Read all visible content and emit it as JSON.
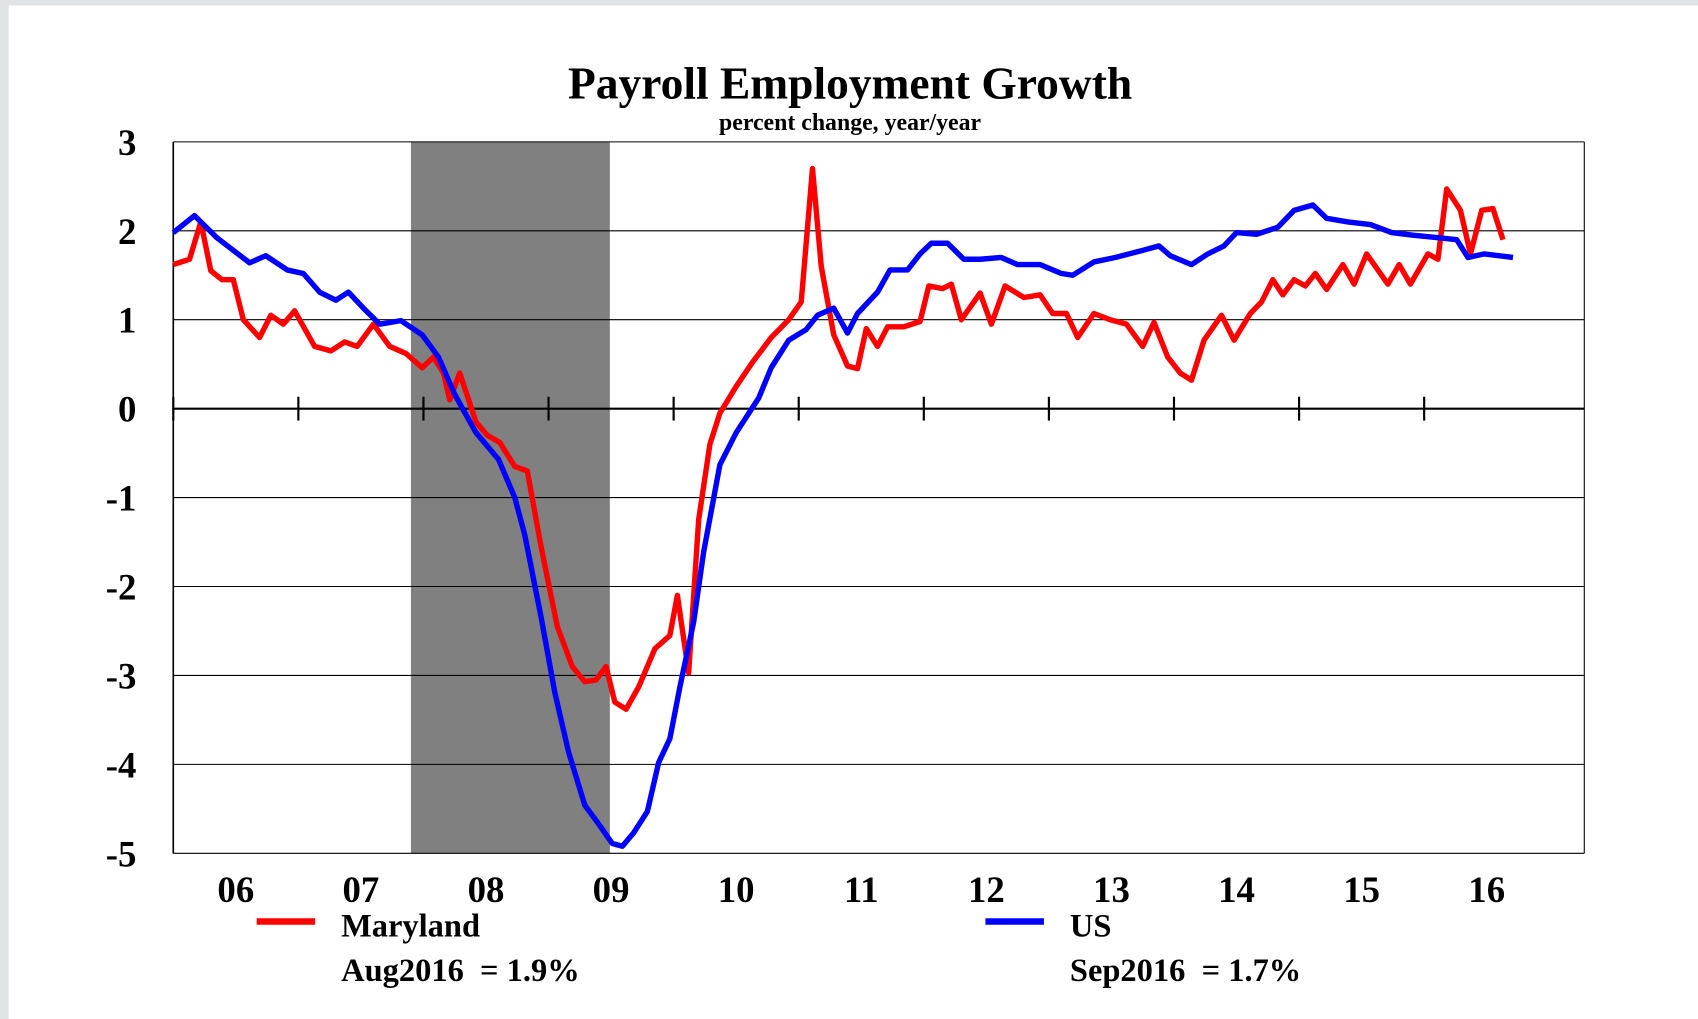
{
  "chart_data": {
    "type": "line",
    "title": "Payroll Employment Growth",
    "subtitle": "percent change, year/year",
    "xlim": [
      2006,
      2017.28
    ],
    "xticks": [
      {
        "value": 2006,
        "label": "06"
      },
      {
        "value": 2007,
        "label": "07"
      },
      {
        "value": 2008,
        "label": "08"
      },
      {
        "value": 2009,
        "label": "09"
      },
      {
        "value": 2010,
        "label": "10"
      },
      {
        "value": 2011,
        "label": "11"
      },
      {
        "value": 2012,
        "label": "12"
      },
      {
        "value": 2013,
        "label": "13"
      },
      {
        "value": 2014,
        "label": "14"
      },
      {
        "value": 2015,
        "label": "15"
      },
      {
        "value": 2016,
        "label": "16"
      }
    ],
    "ylim": [
      -5,
      3
    ],
    "yticks": [
      -5,
      -4,
      -3,
      -2,
      -1,
      0,
      1,
      2,
      3
    ],
    "grid": true,
    "recession": [
      2007.9,
      2009.49
    ],
    "recession_color": "#808080",
    "series": [
      {
        "name": "Maryland",
        "color": "#ff0000",
        "note": "Aug2016  = 1.9%",
        "x": [
          2006.0,
          2006.13,
          2006.22,
          2006.3,
          2006.39,
          2006.48,
          2006.56,
          2006.69,
          2006.78,
          2006.88,
          2006.97,
          2007.13,
          2007.26,
          2007.37,
          2007.47,
          2007.6,
          2007.73,
          2007.86,
          2007.99,
          2008.08,
          2008.16,
          2008.21,
          2008.29,
          2008.42,
          2008.51,
          2008.61,
          2008.73,
          2008.83,
          2008.94,
          2009.07,
          2009.19,
          2009.29,
          2009.38,
          2009.46,
          2009.53,
          2009.62,
          2009.72,
          2009.85,
          2009.97,
          2010.03,
          2010.12,
          2010.2,
          2010.29,
          2010.37,
          2010.5,
          2010.63,
          2010.78,
          2010.92,
          2011.02,
          2011.11,
          2011.18,
          2011.28,
          2011.39,
          2011.47,
          2011.54,
          2011.63,
          2011.71,
          2011.84,
          2011.97,
          2012.04,
          2012.15,
          2012.22,
          2012.3,
          2012.45,
          2012.54,
          2012.65,
          2012.8,
          2012.93,
          2013.03,
          2013.14,
          2013.23,
          2013.36,
          2013.49,
          2013.62,
          2013.75,
          2013.84,
          2013.95,
          2014.05,
          2014.14,
          2014.24,
          2014.38,
          2014.48,
          2014.61,
          2014.7,
          2014.79,
          2014.87,
          2014.96,
          2015.05,
          2015.13,
          2015.22,
          2015.35,
          2015.44,
          2015.54,
          2015.71,
          2015.8,
          2015.89,
          2016.03,
          2016.11,
          2016.18,
          2016.29,
          2016.37,
          2016.46,
          2016.55,
          2016.63
        ],
        "values": [
          1.62,
          1.68,
          2.1,
          1.55,
          1.45,
          1.45,
          1.0,
          0.8,
          1.05,
          0.95,
          1.1,
          0.7,
          0.65,
          0.75,
          0.7,
          0.95,
          0.7,
          0.62,
          0.46,
          0.58,
          0.4,
          0.1,
          0.4,
          -0.15,
          -0.3,
          -0.38,
          -0.65,
          -0.7,
          -1.55,
          -2.45,
          -2.9,
          -3.07,
          -3.05,
          -2.9,
          -3.3,
          -3.38,
          -3.13,
          -2.7,
          -2.55,
          -2.1,
          -2.97,
          -1.25,
          -0.4,
          -0.05,
          0.25,
          0.52,
          0.8,
          1.0,
          1.2,
          2.7,
          1.6,
          0.83,
          0.48,
          0.45,
          0.9,
          0.7,
          0.92,
          0.92,
          0.98,
          1.38,
          1.35,
          1.4,
          1.0,
          1.3,
          0.95,
          1.38,
          1.25,
          1.28,
          1.07,
          1.07,
          0.8,
          1.07,
          1.0,
          0.95,
          0.7,
          0.97,
          0.58,
          0.4,
          0.32,
          0.77,
          1.05,
          0.77,
          1.07,
          1.2,
          1.45,
          1.28,
          1.45,
          1.38,
          1.52,
          1.34,
          1.62,
          1.4,
          1.74,
          1.4,
          1.62,
          1.4,
          1.74,
          1.68,
          2.47,
          2.23,
          1.74,
          2.23,
          2.25,
          1.9
        ]
      },
      {
        "name": "US",
        "color": "#0000ff",
        "note": "Sep2016  = 1.7%",
        "x": [
          2006.0,
          2006.17,
          2006.35,
          2006.61,
          2006.74,
          2006.91,
          2007.04,
          2007.17,
          2007.3,
          2007.4,
          2007.52,
          2007.65,
          2007.82,
          2007.99,
          2008.12,
          2008.25,
          2008.42,
          2008.6,
          2008.73,
          2008.81,
          2008.94,
          2009.05,
          2009.16,
          2009.29,
          2009.39,
          2009.51,
          2009.59,
          2009.68,
          2009.79,
          2009.88,
          2009.97,
          2010.05,
          2010.16,
          2010.24,
          2010.37,
          2010.5,
          2010.68,
          2010.78,
          2010.92,
          2011.06,
          2011.15,
          2011.28,
          2011.39,
          2011.47,
          2011.63,
          2011.73,
          2011.87,
          2011.97,
          2012.06,
          2012.19,
          2012.32,
          2012.45,
          2012.62,
          2012.75,
          2012.93,
          2013.1,
          2013.19,
          2013.36,
          2013.53,
          2013.75,
          2013.88,
          2013.97,
          2014.14,
          2014.27,
          2014.4,
          2014.5,
          2014.66,
          2014.83,
          2014.96,
          2015.11,
          2015.22,
          2015.39,
          2015.57,
          2015.74,
          2015.91,
          2016.13,
          2016.26,
          2016.35,
          2016.48,
          2016.71
        ],
        "values": [
          1.98,
          2.17,
          1.92,
          1.64,
          1.72,
          1.56,
          1.52,
          1.31,
          1.22,
          1.31,
          1.13,
          0.95,
          0.99,
          0.83,
          0.58,
          0.16,
          -0.27,
          -0.57,
          -1.0,
          -1.42,
          -2.34,
          -3.19,
          -3.86,
          -4.46,
          -4.65,
          -4.89,
          -4.92,
          -4.77,
          -4.53,
          -3.98,
          -3.71,
          -3.13,
          -2.4,
          -1.61,
          -0.63,
          -0.27,
          0.12,
          0.46,
          0.77,
          0.89,
          1.05,
          1.13,
          0.85,
          1.07,
          1.31,
          1.56,
          1.56,
          1.74,
          1.86,
          1.86,
          1.68,
          1.68,
          1.7,
          1.62,
          1.62,
          1.52,
          1.5,
          1.65,
          1.7,
          1.78,
          1.83,
          1.72,
          1.62,
          1.74,
          1.83,
          1.98,
          1.96,
          2.04,
          2.23,
          2.29,
          2.14,
          2.1,
          2.07,
          1.98,
          1.95,
          1.92,
          1.9,
          1.7,
          1.74,
          1.7
        ]
      }
    ]
  }
}
